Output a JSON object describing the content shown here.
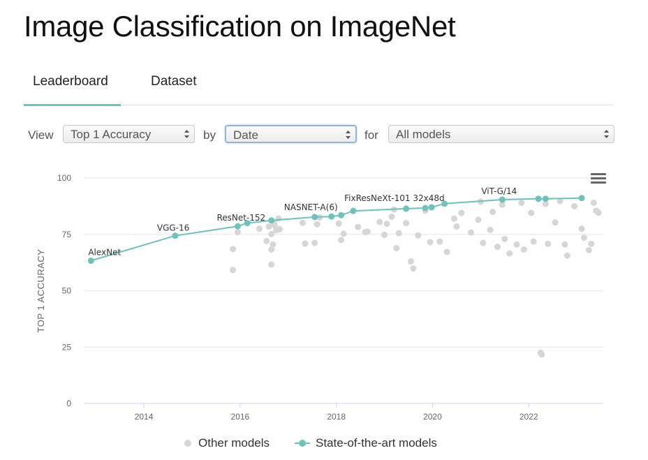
{
  "page": {
    "title": "Image Classification on ImageNet"
  },
  "tabs": [
    {
      "label": "Leaderboard",
      "active": true
    },
    {
      "label": "Dataset",
      "active": false
    }
  ],
  "filters": {
    "view_label": "View",
    "metric_value": "Top 1 Accuracy",
    "by_label": "by",
    "by_value": "Date",
    "for_label": "for",
    "for_value": "All models"
  },
  "colors": {
    "sota": "#6cc2bd",
    "other": "#d6d6d6",
    "tab_underline": "#6cc2bd"
  },
  "menu_icon": "hamburger-menu-icon",
  "chart_data": {
    "type": "scatter",
    "ylabel": "TOP 1 ACCURACY",
    "xlabel": "",
    "xlim": [
      2012.75,
      2023.55
    ],
    "ylim": [
      0,
      100
    ],
    "x_ticks": [
      "2014",
      "2016",
      "2018",
      "2020",
      "2022"
    ],
    "x_tick_values": [
      2014,
      2016,
      2018,
      2020,
      2022
    ],
    "y_ticks": [
      "0",
      "25",
      "50",
      "75",
      "100"
    ],
    "y_tick_values": [
      0,
      25,
      50,
      75,
      100
    ],
    "grid": "horizontal",
    "legend_position": "bottom",
    "series": [
      {
        "name": "Other models",
        "marker": "dot",
        "points": [
          [
            2015.85,
            68.5
          ],
          [
            2015.85,
            59.2
          ],
          [
            2015.95,
            76.0
          ],
          [
            2016.4,
            77.5
          ],
          [
            2016.55,
            72.0
          ],
          [
            2016.6,
            78.5
          ],
          [
            2016.65,
            68.3
          ],
          [
            2016.65,
            61.6
          ],
          [
            2016.65,
            75.1
          ],
          [
            2016.68,
            70.5
          ],
          [
            2016.7,
            80.2
          ],
          [
            2016.72,
            79.0
          ],
          [
            2016.75,
            76.8
          ],
          [
            2016.8,
            82.0
          ],
          [
            2016.82,
            77.3
          ],
          [
            2017.3,
            80.1
          ],
          [
            2017.35,
            70.9
          ],
          [
            2017.55,
            71.2
          ],
          [
            2017.6,
            79.5
          ],
          [
            2017.65,
            82.5
          ],
          [
            2018.05,
            79.8
          ],
          [
            2018.1,
            72.5
          ],
          [
            2018.15,
            75.3
          ],
          [
            2018.45,
            78.3
          ],
          [
            2018.6,
            76.0
          ],
          [
            2018.65,
            76.2
          ],
          [
            2018.9,
            80.5
          ],
          [
            2019.0,
            74.8
          ],
          [
            2019.05,
            79.7
          ],
          [
            2019.15,
            82.8
          ],
          [
            2019.25,
            68.9
          ],
          [
            2019.3,
            75.5
          ],
          [
            2019.45,
            80.0
          ],
          [
            2019.55,
            63.0
          ],
          [
            2019.6,
            59.9
          ],
          [
            2019.7,
            74.5
          ],
          [
            2019.95,
            71.5
          ],
          [
            2020.15,
            71.8
          ],
          [
            2020.3,
            67.2
          ],
          [
            2020.5,
            78.5
          ],
          [
            2020.6,
            84.5
          ],
          [
            2020.8,
            75.8
          ],
          [
            2020.95,
            81.5
          ],
          [
            2021.05,
            71.2
          ],
          [
            2021.2,
            77.0
          ],
          [
            2021.35,
            69.5
          ],
          [
            2021.5,
            73.0
          ],
          [
            2021.6,
            66.5
          ],
          [
            2021.75,
            70.5
          ],
          [
            2021.9,
            68.3
          ],
          [
            2022.1,
            71.8
          ],
          [
            2022.25,
            22.5
          ],
          [
            2022.27,
            21.7
          ],
          [
            2022.4,
            70.8
          ],
          [
            2022.55,
            80.3
          ],
          [
            2022.75,
            70.5
          ],
          [
            2022.8,
            65.6
          ],
          [
            2022.95,
            87.5
          ],
          [
            2023.1,
            77.5
          ],
          [
            2023.15,
            73.5
          ],
          [
            2023.25,
            68.0
          ],
          [
            2023.3,
            70.8
          ],
          [
            2023.35,
            89.0
          ],
          [
            2023.4,
            85.5
          ],
          [
            2023.45,
            84.6
          ],
          [
            2021.0,
            89.5
          ],
          [
            2021.45,
            88.2
          ],
          [
            2021.85,
            89.0
          ],
          [
            2022.35,
            88.5
          ],
          [
            2022.65,
            89.8
          ],
          [
            2022.05,
            84.5
          ],
          [
            2021.25,
            85.0
          ],
          [
            2020.45,
            82.0
          ],
          [
            2019.85,
            85.5
          ],
          [
            2019.2,
            86.0
          ]
        ]
      },
      {
        "name": "State-of-the-art models",
        "marker": "dot",
        "points": [
          [
            2012.9,
            63.3
          ],
          [
            2014.65,
            74.4
          ],
          [
            2015.95,
            78.6
          ],
          [
            2016.15,
            80.0
          ],
          [
            2016.65,
            81.2
          ],
          [
            2017.55,
            82.7
          ],
          [
            2017.9,
            82.9
          ],
          [
            2018.1,
            83.5
          ],
          [
            2018.35,
            85.4
          ],
          [
            2019.45,
            86.4
          ],
          [
            2019.85,
            86.7
          ],
          [
            2019.98,
            87.0
          ],
          [
            2020.25,
            88.6
          ],
          [
            2021.45,
            90.4
          ],
          [
            2022.2,
            90.8
          ],
          [
            2022.35,
            90.8
          ],
          [
            2023.1,
            91.1
          ]
        ]
      }
    ],
    "annotations": [
      {
        "text": "AlexNet",
        "x": 2012.9,
        "y": 63.3
      },
      {
        "text": "VGG-16",
        "x": 2014.65,
        "y": 74.4
      },
      {
        "text": "ResNet-152",
        "x": 2015.95,
        "y": 78.6
      },
      {
        "text": "NASNET-A(6)",
        "x": 2017.9,
        "y": 82.9
      },
      {
        "text": "FixResNeXt-101 32x48d",
        "x": 2019.85,
        "y": 86.7
      },
      {
        "text": "ViT-G/14",
        "x": 2021.45,
        "y": 90.4
      }
    ]
  }
}
